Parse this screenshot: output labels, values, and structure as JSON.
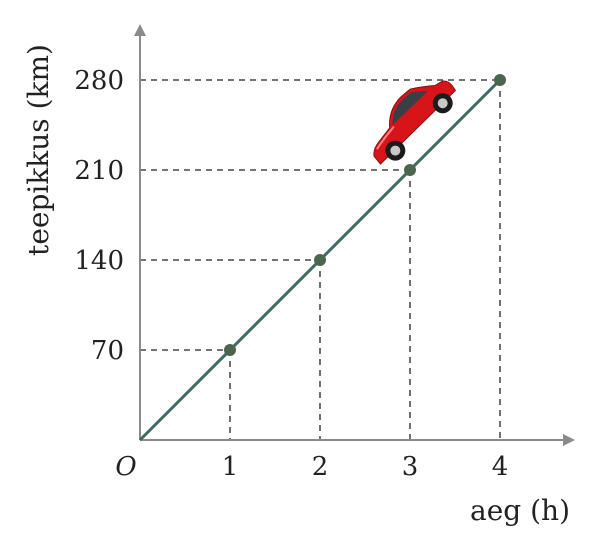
{
  "chart_data": {
    "type": "line",
    "x": [
      0,
      1,
      2,
      3,
      4
    ],
    "series": [
      {
        "values": [
          0,
          70,
          140,
          210,
          280
        ]
      }
    ],
    "marked_points": [
      {
        "x": 1,
        "y": 70
      },
      {
        "x": 2,
        "y": 140
      },
      {
        "x": 3,
        "y": 210
      },
      {
        "x": 4,
        "y": 280
      }
    ],
    "x_ticks": [
      "1",
      "2",
      "3",
      "4"
    ],
    "y_ticks": [
      "70",
      "140",
      "210",
      "280"
    ],
    "origin_label": "O",
    "xlabel": "aeg (h)",
    "ylabel": "teepikkus (km)",
    "xlim": [
      0,
      4.9
    ],
    "ylim": [
      0,
      310
    ],
    "grid": false,
    "guide_lines": "dashed",
    "illustration": "red-car-icon",
    "colors": {
      "line": "#3d6b64",
      "point": "#4a6651",
      "axis": "#8a8a8a",
      "guide": "#222222",
      "car_body": "#d8141b"
    }
  }
}
